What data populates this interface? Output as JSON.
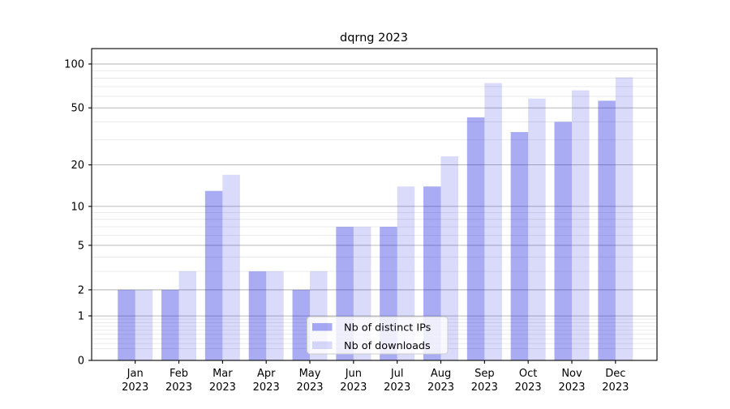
{
  "chart_data": {
    "type": "bar",
    "title": "dqrng 2023",
    "categories": [
      "Jan",
      "Feb",
      "Mar",
      "Apr",
      "May",
      "Jun",
      "Jul",
      "Aug",
      "Sep",
      "Oct",
      "Nov",
      "Dec"
    ],
    "year": "2023",
    "series": [
      {
        "name": "Nb of distinct IPs",
        "fill": "rgba(10,16,222,0.35)",
        "values": [
          2,
          2,
          13,
          3,
          2,
          7,
          7,
          14,
          43,
          34,
          40,
          56
        ]
      },
      {
        "name": "Nb of downloads",
        "fill": "rgba(10,16,222,0.15)",
        "values": [
          2,
          3,
          17,
          3,
          3,
          7,
          14,
          23,
          74,
          58,
          66,
          81
        ]
      }
    ],
    "yscale": "log10(v+1)",
    "yticks": [
      0,
      1,
      2,
      5,
      10,
      20,
      50,
      100
    ],
    "minor_gridlines": [
      0.2,
      0.3,
      0.4,
      0.5,
      0.6,
      0.7,
      0.8,
      0.9,
      3,
      4,
      6,
      7,
      8,
      9,
      30,
      40,
      60,
      70,
      80,
      90
    ],
    "ylim": [
      0,
      127
    ],
    "xlabel": "",
    "ylabel": "",
    "grid": true,
    "legend": {
      "labels": [
        "Nb of distinct IPs",
        "Nb of downloads"
      ],
      "position": "lower center"
    }
  },
  "colors": {
    "major_grid": "#b0b0b0",
    "minor_grid": "#e8e8e8",
    "spine": "#000000",
    "text": "#000000",
    "legend_bg": "rgba(255,255,255,0.8)",
    "legend_border": "#cccccc"
  }
}
